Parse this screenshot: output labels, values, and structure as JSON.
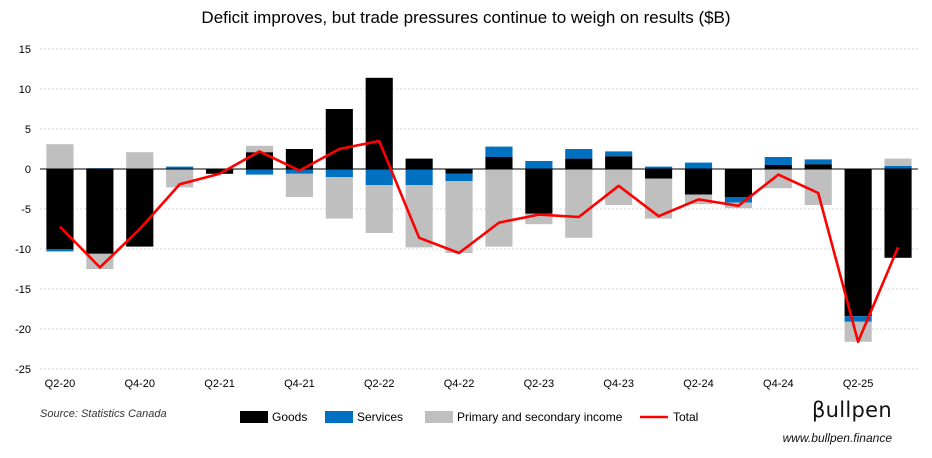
{
  "chart_data": {
    "type": "bar",
    "stacked": true,
    "title": "Deficit improves, but trade pressures continue to weigh on results ($B)",
    "ylim": [
      -25,
      15
    ],
    "yticks": [
      -25,
      -20,
      -15,
      -10,
      -5,
      0,
      5,
      10,
      15
    ],
    "categories": [
      "Q2-20",
      "Q3-20",
      "Q4-20",
      "Q1-21",
      "Q2-21",
      "Q3-21",
      "Q4-21",
      "Q1-22",
      "Q2-22",
      "Q3-22",
      "Q4-22",
      "Q1-23",
      "Q2-23",
      "Q3-23",
      "Q4-23",
      "Q1-24",
      "Q2-24",
      "Q3-24",
      "Q4-24",
      "Q1-25",
      "Q2-25",
      "Q3-25"
    ],
    "tick_labels": [
      "Q2-20",
      "",
      "Q4-20",
      "",
      "Q2-21",
      "",
      "Q4-21",
      "",
      "Q2-22",
      "",
      "Q4-22",
      "",
      "Q2-23",
      "",
      "Q4-23",
      "",
      "Q2-24",
      "",
      "Q4-24",
      "",
      "Q2-25",
      ""
    ],
    "series": [
      {
        "name": "Goods",
        "kind": "bar",
        "color": "#000000",
        "values": [
          -10.0,
          -10.6,
          -9.7,
          0.0,
          -0.6,
          2.1,
          2.5,
          7.5,
          11.4,
          1.3,
          -0.6,
          1.5,
          -5.6,
          1.3,
          1.6,
          -1.2,
          -3.2,
          -3.5,
          0.5,
          0.6,
          -18.4,
          -11.1
        ]
      },
      {
        "name": "Services",
        "kind": "bar",
        "color": "#0070C0",
        "values": [
          -0.3,
          0.1,
          0.0,
          0.3,
          0.0,
          -0.7,
          -0.6,
          -1.0,
          -2.0,
          -2.0,
          -0.9,
          1.3,
          1.0,
          1.2,
          0.6,
          0.3,
          0.8,
          -0.7,
          1.0,
          0.6,
          -0.7,
          0.4
        ]
      },
      {
        "name": "Primary and secondary income",
        "kind": "bar",
        "color": "#BFBFBF",
        "values": [
          3.1,
          -1.9,
          2.1,
          -2.3,
          0.0,
          0.8,
          -2.9,
          -5.2,
          -6.0,
          -7.8,
          -9.0,
          -9.7,
          -1.3,
          -8.6,
          -4.5,
          -5.0,
          -1.2,
          -0.7,
          -2.4,
          -4.5,
          -2.5,
          0.9
        ]
      },
      {
        "name": "Total",
        "kind": "line",
        "color": "#FF0000",
        "values": [
          -7.2,
          -12.3,
          -7.5,
          -1.9,
          -0.6,
          2.2,
          -0.2,
          2.5,
          3.5,
          -8.6,
          -10.5,
          -6.7,
          -5.7,
          -6.0,
          -2.1,
          -5.9,
          -3.8,
          -4.6,
          -0.7,
          -3.0,
          -21.6,
          -9.8
        ]
      }
    ],
    "legend_position": "bottom",
    "gridlines": true
  },
  "footer": {
    "source": "Source: Statistics Canada",
    "brand": "βullpen",
    "url": "www.bullpen.finance"
  }
}
